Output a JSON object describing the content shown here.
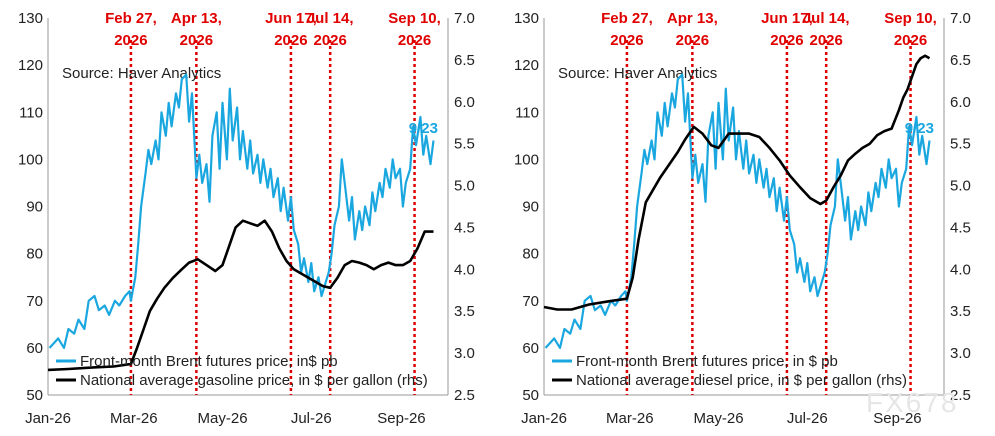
{
  "watermark": "FX678",
  "chart_data": [
    {
      "type": "line",
      "source": "Source: Haver Analytics",
      "x_ticks": [
        "Jan-26",
        "Mar-26",
        "May-26",
        "Jul-26",
        "Sep-26"
      ],
      "y_left": {
        "ticks": [
          50,
          60,
          70,
          80,
          90,
          100,
          110,
          120,
          130
        ],
        "lim": [
          50,
          130
        ]
      },
      "y_right": {
        "ticks": [
          "2.5",
          "3.0",
          "3.5",
          "4.0",
          "4.5",
          "5.0",
          "5.5",
          "6.0",
          "6.5",
          "7.0"
        ],
        "lim": [
          2.5,
          7.0
        ]
      },
      "events": [
        {
          "label": [
            "Feb 27,",
            "2026"
          ],
          "date": "2026-02-27"
        },
        {
          "label": [
            "Apr 13,",
            "2026"
          ],
          "date": "2026-04-13"
        },
        {
          "label": [
            "Jun 17,",
            "2026"
          ],
          "date": "2026-06-17"
        },
        {
          "label": [
            "Jul 14,",
            "2026"
          ],
          "date": "2026-07-14"
        },
        {
          "label": [
            "Sep 10,",
            "2026"
          ],
          "date": "2026-09-10"
        }
      ],
      "annotation": {
        "text": "9/23",
        "color": "#1aa7e0"
      },
      "series": [
        {
          "name": "Front-month Brent futures price, in$ pb",
          "axis": "left",
          "color": "#1aa7e0",
          "x": [
            "2026-01-02",
            "2026-01-05",
            "2026-01-08",
            "2026-01-12",
            "2026-01-15",
            "2026-01-19",
            "2026-01-22",
            "2026-01-26",
            "2026-01-29",
            "2026-02-02",
            "2026-02-05",
            "2026-02-09",
            "2026-02-12",
            "2026-02-16",
            "2026-02-19",
            "2026-02-23",
            "2026-02-26",
            "2026-02-27",
            "2026-03-02",
            "2026-03-04",
            "2026-03-06",
            "2026-03-09",
            "2026-03-11",
            "2026-03-13",
            "2026-03-16",
            "2026-03-18",
            "2026-03-20",
            "2026-03-23",
            "2026-03-25",
            "2026-03-27",
            "2026-03-30",
            "2026-04-01",
            "2026-04-03",
            "2026-04-06",
            "2026-04-08",
            "2026-04-10",
            "2026-04-13",
            "2026-04-15",
            "2026-04-17",
            "2026-04-20",
            "2026-04-22",
            "2026-04-24",
            "2026-04-27",
            "2026-04-29",
            "2026-05-01",
            "2026-05-04",
            "2026-05-06",
            "2026-05-08",
            "2026-05-11",
            "2026-05-13",
            "2026-05-15",
            "2026-05-18",
            "2026-05-20",
            "2026-05-22",
            "2026-05-25",
            "2026-05-27",
            "2026-05-29",
            "2026-06-01",
            "2026-06-03",
            "2026-06-05",
            "2026-06-08",
            "2026-06-10",
            "2026-06-12",
            "2026-06-15",
            "2026-06-17",
            "2026-06-19",
            "2026-06-22",
            "2026-06-24",
            "2026-06-26",
            "2026-06-29",
            "2026-07-01",
            "2026-07-03",
            "2026-07-06",
            "2026-07-08",
            "2026-07-10",
            "2026-07-13",
            "2026-07-15",
            "2026-07-17",
            "2026-07-20",
            "2026-07-22",
            "2026-07-24",
            "2026-07-27",
            "2026-07-29",
            "2026-07-31",
            "2026-08-03",
            "2026-08-05",
            "2026-08-07",
            "2026-08-10",
            "2026-08-12",
            "2026-08-14",
            "2026-08-17",
            "2026-08-19",
            "2026-08-21",
            "2026-08-24",
            "2026-08-26",
            "2026-08-28",
            "2026-08-31",
            "2026-09-02",
            "2026-09-04",
            "2026-09-07",
            "2026-09-09",
            "2026-09-11",
            "2026-09-14",
            "2026-09-16",
            "2026-09-18",
            "2026-09-21",
            "2026-09-23"
          ],
          "y": [
            60,
            61,
            62,
            60,
            64,
            63,
            66,
            64,
            70,
            71,
            68,
            69,
            67,
            70,
            69,
            71,
            72,
            70,
            75,
            82,
            90,
            97,
            102,
            99,
            104,
            100,
            110,
            105,
            112,
            107,
            114,
            111,
            117,
            118,
            108,
            114,
            96,
            101,
            95,
            99,
            91,
            105,
            110,
            98,
            112,
            100,
            115,
            104,
            111,
            100,
            106,
            98,
            104,
            97,
            101,
            95,
            100,
            94,
            98,
            92,
            96,
            89,
            94,
            87,
            92,
            85,
            82,
            76,
            79,
            74,
            78,
            72,
            75,
            71,
            73,
            76,
            80,
            86,
            90,
            100,
            95,
            87,
            92,
            83,
            89,
            85,
            90,
            86,
            93,
            89,
            95,
            92,
            98,
            94,
            100,
            96,
            98,
            90,
            95,
            98,
            107,
            103,
            109,
            101,
            105,
            99,
            104
          ]
        },
        {
          "name": "National average gasoline price, in $ per gallon (rhs)",
          "axis": "right",
          "color": "#000000",
          "x": [
            "2026-01-01",
            "2026-01-15",
            "2026-02-01",
            "2026-02-15",
            "2026-02-27",
            "2026-03-03",
            "2026-03-08",
            "2026-03-12",
            "2026-03-17",
            "2026-03-22",
            "2026-03-28",
            "2026-04-03",
            "2026-04-08",
            "2026-04-14",
            "2026-04-20",
            "2026-04-26",
            "2026-05-01",
            "2026-05-06",
            "2026-05-10",
            "2026-05-15",
            "2026-05-20",
            "2026-05-25",
            "2026-05-30",
            "2026-06-04",
            "2026-06-09",
            "2026-06-14",
            "2026-06-19",
            "2026-06-24",
            "2026-06-29",
            "2026-07-04",
            "2026-07-09",
            "2026-07-14",
            "2026-07-19",
            "2026-07-24",
            "2026-07-29",
            "2026-08-03",
            "2026-08-08",
            "2026-08-13",
            "2026-08-18",
            "2026-08-23",
            "2026-08-28",
            "2026-09-02",
            "2026-09-07",
            "2026-09-12",
            "2026-09-17",
            "2026-09-23"
          ],
          "y": [
            2.8,
            2.81,
            2.83,
            2.84,
            2.87,
            3.05,
            3.3,
            3.5,
            3.65,
            3.78,
            3.9,
            4.0,
            4.08,
            4.12,
            4.05,
            3.98,
            4.05,
            4.3,
            4.5,
            4.58,
            4.55,
            4.52,
            4.58,
            4.45,
            4.25,
            4.1,
            4.0,
            3.95,
            3.9,
            3.85,
            3.8,
            3.78,
            3.9,
            4.05,
            4.1,
            4.08,
            4.05,
            4.0,
            4.05,
            4.08,
            4.05,
            4.05,
            4.1,
            4.25,
            4.45,
            4.45
          ]
        }
      ]
    },
    {
      "type": "line",
      "source": "Source: Haver Analytics",
      "x_ticks": [
        "Jan-26",
        "Mar-26",
        "May-26",
        "Jul-26",
        "Sep-26"
      ],
      "y_left": {
        "ticks": [
          50,
          60,
          70,
          80,
          90,
          100,
          110,
          120,
          130
        ],
        "lim": [
          50,
          130
        ]
      },
      "y_right": {
        "ticks": [
          "2.5",
          "3.0",
          "3.5",
          "4.0",
          "4.5",
          "5.0",
          "5.5",
          "6.0",
          "6.5",
          "7.0"
        ],
        "lim": [
          2.5,
          7.0
        ]
      },
      "events": [
        {
          "label": [
            "Feb 27,",
            "2026"
          ],
          "date": "2026-02-27"
        },
        {
          "label": [
            "Apr 13,",
            "2026"
          ],
          "date": "2026-04-13"
        },
        {
          "label": [
            "Jun 17,",
            "2026"
          ],
          "date": "2026-06-17"
        },
        {
          "label": [
            "Jul 14,",
            "2026"
          ],
          "date": "2026-07-14"
        },
        {
          "label": [
            "Sep 10,",
            "2026"
          ],
          "date": "2026-09-10"
        }
      ],
      "annotation": {
        "text": "9/23",
        "color": "#1aa7e0"
      },
      "series": [
        {
          "name": "Front-month Brent futures price, in $ pb",
          "axis": "left",
          "color": "#1aa7e0",
          "x": [
            "2026-01-02",
            "2026-01-05",
            "2026-01-08",
            "2026-01-12",
            "2026-01-15",
            "2026-01-19",
            "2026-01-22",
            "2026-01-26",
            "2026-01-29",
            "2026-02-02",
            "2026-02-05",
            "2026-02-09",
            "2026-02-12",
            "2026-02-16",
            "2026-02-19",
            "2026-02-23",
            "2026-02-26",
            "2026-02-27",
            "2026-03-02",
            "2026-03-04",
            "2026-03-06",
            "2026-03-09",
            "2026-03-11",
            "2026-03-13",
            "2026-03-16",
            "2026-03-18",
            "2026-03-20",
            "2026-03-23",
            "2026-03-25",
            "2026-03-27",
            "2026-03-30",
            "2026-04-01",
            "2026-04-03",
            "2026-04-06",
            "2026-04-08",
            "2026-04-10",
            "2026-04-13",
            "2026-04-15",
            "2026-04-17",
            "2026-04-20",
            "2026-04-22",
            "2026-04-24",
            "2026-04-27",
            "2026-04-29",
            "2026-05-01",
            "2026-05-04",
            "2026-05-06",
            "2026-05-08",
            "2026-05-11",
            "2026-05-13",
            "2026-05-15",
            "2026-05-18",
            "2026-05-20",
            "2026-05-22",
            "2026-05-25",
            "2026-05-27",
            "2026-05-29",
            "2026-06-01",
            "2026-06-03",
            "2026-06-05",
            "2026-06-08",
            "2026-06-10",
            "2026-06-12",
            "2026-06-15",
            "2026-06-17",
            "2026-06-19",
            "2026-06-22",
            "2026-06-24",
            "2026-06-26",
            "2026-06-29",
            "2026-07-01",
            "2026-07-03",
            "2026-07-06",
            "2026-07-08",
            "2026-07-10",
            "2026-07-13",
            "2026-07-15",
            "2026-07-17",
            "2026-07-20",
            "2026-07-22",
            "2026-07-24",
            "2026-07-27",
            "2026-07-29",
            "2026-07-31",
            "2026-08-03",
            "2026-08-05",
            "2026-08-07",
            "2026-08-10",
            "2026-08-12",
            "2026-08-14",
            "2026-08-17",
            "2026-08-19",
            "2026-08-21",
            "2026-08-24",
            "2026-08-26",
            "2026-08-28",
            "2026-08-31",
            "2026-09-02",
            "2026-09-04",
            "2026-09-07",
            "2026-09-09",
            "2026-09-11",
            "2026-09-14",
            "2026-09-16",
            "2026-09-18",
            "2026-09-21",
            "2026-09-23"
          ],
          "y": [
            60,
            61,
            62,
            60,
            64,
            63,
            66,
            64,
            70,
            71,
            68,
            69,
            67,
            70,
            69,
            71,
            72,
            70,
            75,
            82,
            90,
            97,
            102,
            99,
            104,
            100,
            110,
            105,
            112,
            107,
            114,
            111,
            117,
            118,
            108,
            114,
            96,
            101,
            95,
            99,
            91,
            105,
            110,
            98,
            112,
            100,
            115,
            104,
            111,
            100,
            106,
            98,
            104,
            97,
            101,
            95,
            100,
            94,
            98,
            92,
            96,
            89,
            94,
            87,
            92,
            85,
            82,
            76,
            79,
            74,
            78,
            72,
            75,
            71,
            73,
            76,
            80,
            86,
            90,
            100,
            95,
            87,
            92,
            83,
            89,
            85,
            90,
            86,
            93,
            89,
            95,
            92,
            98,
            94,
            100,
            96,
            98,
            90,
            95,
            98,
            107,
            103,
            109,
            101,
            105,
            99,
            104
          ]
        },
        {
          "name": "National average diesel price, in $ per gallon (rhs)",
          "axis": "right",
          "color": "#000000",
          "x": [
            "2026-01-01",
            "2026-01-10",
            "2026-01-20",
            "2026-02-01",
            "2026-02-15",
            "2026-02-27",
            "2026-03-03",
            "2026-03-07",
            "2026-03-12",
            "2026-03-17",
            "2026-03-22",
            "2026-03-28",
            "2026-04-03",
            "2026-04-08",
            "2026-04-14",
            "2026-04-20",
            "2026-04-26",
            "2026-05-01",
            "2026-05-08",
            "2026-05-15",
            "2026-05-22",
            "2026-05-29",
            "2026-06-05",
            "2026-06-12",
            "2026-06-19",
            "2026-06-26",
            "2026-07-03",
            "2026-07-10",
            "2026-07-14",
            "2026-07-19",
            "2026-07-24",
            "2026-07-29",
            "2026-08-03",
            "2026-08-08",
            "2026-08-13",
            "2026-08-18",
            "2026-08-23",
            "2026-08-28",
            "2026-09-02",
            "2026-09-05",
            "2026-09-08",
            "2026-09-11",
            "2026-09-14",
            "2026-09-17",
            "2026-09-20",
            "2026-09-23"
          ],
          "y": [
            3.55,
            3.52,
            3.52,
            3.58,
            3.62,
            3.65,
            3.9,
            4.35,
            4.8,
            4.95,
            5.1,
            5.25,
            5.4,
            5.55,
            5.7,
            5.62,
            5.48,
            5.45,
            5.62,
            5.62,
            5.62,
            5.58,
            5.45,
            5.3,
            5.12,
            4.98,
            4.85,
            4.78,
            4.82,
            4.98,
            5.12,
            5.3,
            5.38,
            5.45,
            5.5,
            5.6,
            5.65,
            5.68,
            5.9,
            6.05,
            6.15,
            6.3,
            6.45,
            6.52,
            6.55,
            6.52
          ]
        }
      ]
    }
  ]
}
